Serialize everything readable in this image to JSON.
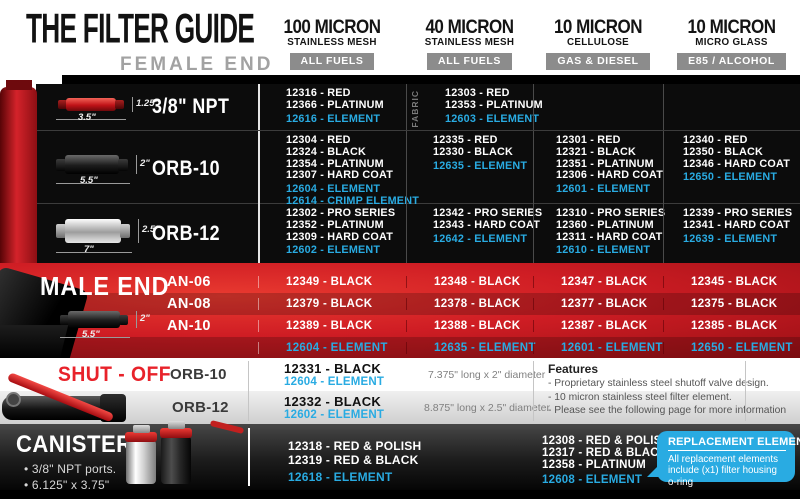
{
  "page": {
    "title": "THE FILTER GUIDE",
    "subtitle": "FEMALE END"
  },
  "columns": [
    {
      "title": "100 MICRON",
      "subtitle": "STAINLESS MESH",
      "badge": "ALL FUELS"
    },
    {
      "title": "40 MICRON",
      "subtitle": "STAINLESS MESH",
      "badge": "ALL FUELS"
    },
    {
      "title": "10 MICRON",
      "subtitle": "CELLULOSE",
      "badge": "GAS & DIESEL"
    },
    {
      "title": "10 MICRON",
      "subtitle": "MICRO GLASS",
      "badge": "E85 / ALCOHOL"
    }
  ],
  "female": {
    "rows": [
      {
        "label": "3/8\" NPT",
        "dim_height": "1.25\"",
        "dim_length": "3.5\"",
        "cells": [
          {
            "note": "",
            "parts": [
              "12316 - RED",
              "12366 - PLATINUM"
            ],
            "elements": [
              "12616 - ELEMENT"
            ]
          },
          {
            "note": "FABRIC",
            "parts": [
              "12303 - RED",
              "12353 - PLATINUM"
            ],
            "elements": [
              "12603 - ELEMENT"
            ]
          },
          {
            "note": "",
            "parts": [],
            "elements": []
          },
          {
            "note": "",
            "parts": [],
            "elements": []
          }
        ]
      },
      {
        "label": "ORB-10",
        "dim_height": "2\"",
        "dim_length": "5.5\"",
        "cells": [
          {
            "note": "",
            "parts": [
              "12304 - RED",
              "12324 - BLACK",
              "12354 - PLATINUM",
              "12307 - HARD COAT"
            ],
            "elements": [
              "12604 - ELEMENT",
              "12614 - CRIMP ELEMENT"
            ]
          },
          {
            "note": "",
            "parts": [
              "12335 - RED",
              "12330 - BLACK"
            ],
            "elements": [
              "12635 - ELEMENT"
            ]
          },
          {
            "note": "",
            "parts": [
              "12301 - RED",
              "12321 - BLACK",
              "12351 - PLATINUM",
              "12306 - HARD COAT"
            ],
            "elements": [
              "12601 - ELEMENT"
            ]
          },
          {
            "note": "",
            "parts": [
              "12340 - RED",
              "12350 - BLACK",
              "12346 - HARD COAT"
            ],
            "elements": [
              "12650 - ELEMENT"
            ]
          }
        ]
      },
      {
        "label": "ORB-12",
        "dim_height": "2.5\"",
        "dim_length": "7\"",
        "cells": [
          {
            "note": "",
            "parts": [
              "12302 - PRO SERIES",
              "12352 - PLATINUM",
              "12309 - HARD COAT"
            ],
            "elements": [
              "12602 - ELEMENT"
            ]
          },
          {
            "note": "",
            "parts": [
              "12342 - PRO SERIES",
              "12343 - HARD COAT"
            ],
            "elements": [
              "12642 - ELEMENT"
            ]
          },
          {
            "note": "",
            "parts": [
              "12310 - PRO SERIES",
              "12360 - PLATINUM",
              "12311 - HARD COAT"
            ],
            "elements": [
              "12610 - ELEMENT"
            ]
          },
          {
            "note": "",
            "parts": [
              "12339 - PRO SERIES",
              "12341 - HARD COAT"
            ],
            "elements": [
              "12639 - ELEMENT"
            ]
          }
        ]
      }
    ]
  },
  "male": {
    "label": "MALE END",
    "dim_height": "2\"",
    "dim_length": "5.5\"",
    "rows": [
      {
        "label": "AN-06",
        "cells": [
          "12349 - BLACK",
          "12348 - BLACK",
          "12347 - BLACK",
          "12345 - BLACK"
        ]
      },
      {
        "label": "AN-08",
        "cells": [
          "12379 - BLACK",
          "12378 - BLACK",
          "12377 - BLACK",
          "12375 - BLACK"
        ]
      },
      {
        "label": "AN-10",
        "cells": [
          "12389 - BLACK",
          "12388 - BLACK",
          "12387 - BLACK",
          "12385 - BLACK"
        ]
      }
    ],
    "element_row": [
      "12604 - ELEMENT",
      "12635 - ELEMENT",
      "12601 - ELEMENT",
      "12650 - ELEMENT"
    ]
  },
  "shutoff": {
    "label": "SHUT - OFF",
    "rows": [
      {
        "label": "ORB-10",
        "part": "12331 - BLACK",
        "element": "12604 - ELEMENT",
        "note": "7.375\" long x 2\" diameter"
      },
      {
        "label": "ORB-12",
        "part": "12332 - BLACK",
        "element": "12602 - ELEMENT",
        "note": "8.875\" long x 2.5\" diameter"
      }
    ],
    "features": {
      "heading": "Features",
      "items": [
        "- Proprietary stainless steel shutoff valve design.",
        "- 10 micron stainless steel filter element.",
        "- Please see the following page for more information"
      ]
    }
  },
  "canister": {
    "label": "CANISTER",
    "bullets": [
      "• 3/8\" NPT ports.",
      "• 6.125\" x 3.75\""
    ],
    "mesh_100": {
      "parts": [
        "12318 - RED & POLISH",
        "12319 - RED & BLACK"
      ],
      "elements": [
        "12618 - ELEMENT"
      ]
    },
    "cellulose_10": {
      "parts": [
        "12308 - RED & POLISH",
        "12317 - RED & BLACK",
        "12358 - PLATINUM"
      ],
      "elements": [
        "12608 - ELEMENT"
      ]
    },
    "bubble": {
      "title": "REPLACEMENT ELEMENTS",
      "lines": [
        "All replacement elements",
        "include (x1) filter housing o-ring"
      ]
    }
  },
  "colors": {
    "accent_cyan": "#29abe2",
    "brand_red": "#d9181f",
    "badge_gray": "#8c8c8c"
  }
}
